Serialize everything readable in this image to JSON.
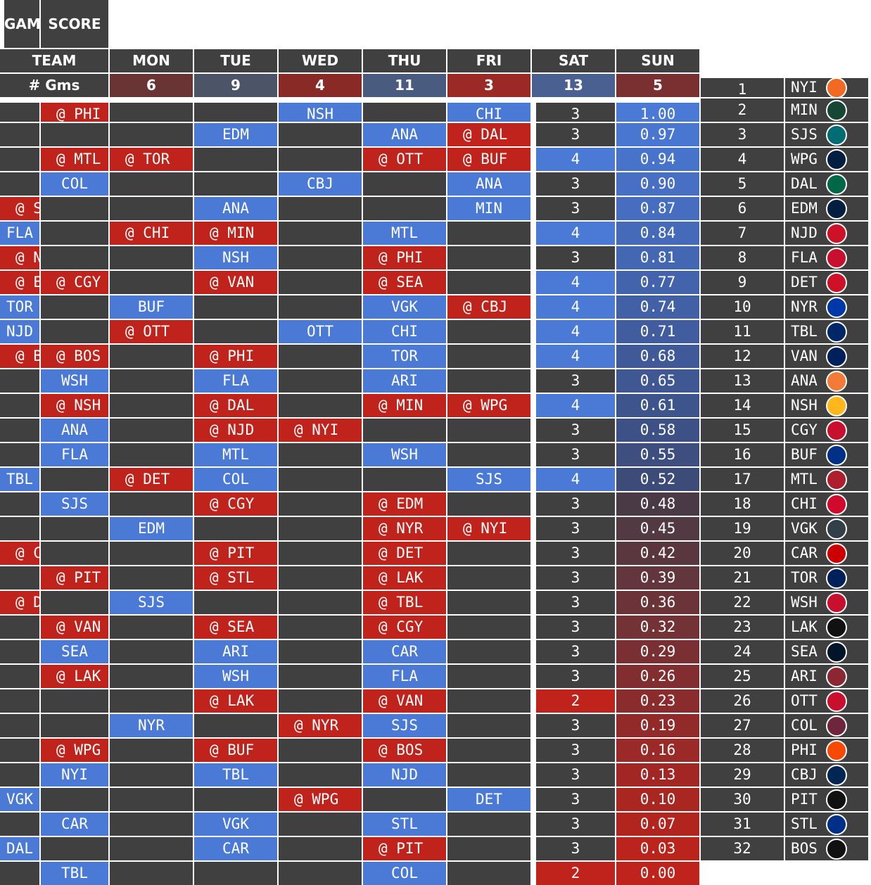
{
  "header": {
    "team": "TEAM",
    "gms_label": "# Gms",
    "games": "GAMES",
    "score": "SCORE",
    "days": [
      {
        "label": "MON",
        "count": "6",
        "bg": "#6b3434"
      },
      {
        "label": "TUE",
        "count": "9",
        "bg": "#4b5567"
      },
      {
        "label": "WED",
        "count": "4",
        "bg": "#8a2a26"
      },
      {
        "label": "THU",
        "count": "11",
        "bg": "#4a5b80"
      },
      {
        "label": "FRI",
        "count": "3",
        "bg": "#9b2a26"
      },
      {
        "label": "SAT",
        "count": "13",
        "bg": "#4a6090"
      },
      {
        "label": "SUN",
        "count": "5",
        "bg": "#7a3030"
      }
    ]
  },
  "colors": {
    "away": "#c0231b",
    "home": "#4a79d6",
    "cell": "#404040"
  },
  "rows": [
    {
      "rank": "1",
      "team": "NYI",
      "logo": "#f26924",
      "games": "3",
      "score": "1.00",
      "score_bg": "#4a79d6",
      "games_bg": "#404040",
      "cells": [
        "",
        "@ PHI",
        "",
        "",
        "NSH",
        "",
        "CHI"
      ]
    },
    {
      "rank": "2",
      "team": "MIN",
      "logo": "#154734",
      "games": "3",
      "score": "0.97",
      "score_bg": "#4976d0",
      "games_bg": "#404040",
      "cells": [
        "",
        "",
        "",
        "EDM",
        "",
        "ANA",
        "@ DAL"
      ]
    },
    {
      "rank": "3",
      "team": "SJS",
      "logo": "#006d75",
      "games": "4",
      "score": "0.94",
      "score_bg": "#4873cb",
      "games_bg": "#4a79d6",
      "cells": [
        "",
        "@ MTL",
        "@ TOR",
        "",
        "",
        "@ OTT",
        "@ BUF"
      ]
    },
    {
      "rank": "4",
      "team": "WPG",
      "logo": "#041e42",
      "games": "3",
      "score": "0.90",
      "score_bg": "#4770c5",
      "games_bg": "#404040",
      "cells": [
        "",
        "COL",
        "",
        "",
        "CBJ",
        "",
        "ANA"
      ]
    },
    {
      "rank": "5",
      "team": "DAL",
      "logo": "#006847",
      "games": "3",
      "score": "0.87",
      "score_bg": "#466dbf",
      "games_bg": "#404040",
      "cells": [
        "@ STL",
        "",
        "",
        "ANA",
        "",
        "",
        "MIN"
      ]
    },
    {
      "rank": "6",
      "team": "EDM",
      "logo": "#041e42",
      "games": "4",
      "score": "0.84",
      "score_bg": "#456ab9",
      "games_bg": "#4a79d6",
      "cells": [
        "FLA",
        "",
        "@ CHI",
        "@ MIN",
        "",
        "MTL",
        ""
      ]
    },
    {
      "rank": "7",
      "team": "NJD",
      "logo": "#ce1126",
      "games": "3",
      "score": "0.81",
      "score_bg": "#4467b3",
      "games_bg": "#404040",
      "cells": [
        "@ NYR",
        "",
        "",
        "NSH",
        "",
        "@ PHI",
        ""
      ]
    },
    {
      "rank": "8",
      "team": "FLA",
      "logo": "#c8102e",
      "games": "4",
      "score": "0.77",
      "score_bg": "#4363ac",
      "games_bg": "#4a79d6",
      "cells": [
        "@ EDM",
        "@ CGY",
        "",
        "@ VAN",
        "",
        "@ SEA",
        ""
      ]
    },
    {
      "rank": "9",
      "team": "DET",
      "logo": "#ce1126",
      "games": "4",
      "score": "0.74",
      "score_bg": "#4260a6",
      "games_bg": "#4a79d6",
      "cells": [
        "TOR",
        "",
        "BUF",
        "",
        "",
        "VGK",
        "@ CBJ"
      ]
    },
    {
      "rank": "10",
      "team": "NYR",
      "logo": "#0038a8",
      "games": "4",
      "score": "0.71",
      "score_bg": "#415d9f",
      "games_bg": "#4a79d6",
      "cells": [
        "NJD",
        "",
        "@ OTT",
        "",
        "OTT",
        "CHI",
        ""
      ]
    },
    {
      "rank": "11",
      "team": "TBL",
      "logo": "#002868",
      "games": "4",
      "score": "0.68",
      "score_bg": "#405a99",
      "games_bg": "#4a79d6",
      "cells": [
        "@ BUF",
        "@ BOS",
        "",
        "@ PHI",
        "",
        "TOR",
        ""
      ]
    },
    {
      "rank": "12",
      "team": "VAN",
      "logo": "#00205b",
      "games": "3",
      "score": "0.65",
      "score_bg": "#3f5793",
      "games_bg": "#404040",
      "cells": [
        "",
        "WSH",
        "",
        "FLA",
        "",
        "ARI",
        ""
      ]
    },
    {
      "rank": "13",
      "team": "ANA",
      "logo": "#f47a38",
      "games": "4",
      "score": "0.61",
      "score_bg": "#3e548c",
      "games_bg": "#4a79d6",
      "cells": [
        "",
        "@ NSH",
        "",
        "@ DAL",
        "",
        "@ MIN",
        "@ WPG"
      ]
    },
    {
      "rank": "14",
      "team": "NSH",
      "logo": "#ffb81c",
      "games": "3",
      "score": "0.58",
      "score_bg": "#3d5186",
      "games_bg": "#404040",
      "cells": [
        "",
        "ANA",
        "",
        "@ NJD",
        "@ NYI",
        "",
        ""
      ]
    },
    {
      "rank": "15",
      "team": "CGY",
      "logo": "#c8102e",
      "games": "3",
      "score": "0.55",
      "score_bg": "#3d4e7f",
      "games_bg": "#404040",
      "cells": [
        "",
        "FLA",
        "",
        "MTL",
        "",
        "WSH",
        ""
      ]
    },
    {
      "rank": "16",
      "team": "BUF",
      "logo": "#003087",
      "games": "4",
      "score": "0.52",
      "score_bg": "#3c4b78",
      "games_bg": "#4a79d6",
      "cells": [
        "TBL",
        "",
        "@ DET",
        "COL",
        "",
        "",
        "SJS"
      ]
    },
    {
      "rank": "17",
      "team": "MTL",
      "logo": "#af1e2d",
      "games": "3",
      "score": "0.48",
      "score_bg": "#4a3a45",
      "games_bg": "#404040",
      "cells": [
        "",
        "SJS",
        "",
        "@ CGY",
        "",
        "@ EDM",
        ""
      ]
    },
    {
      "rank": "18",
      "team": "CHI",
      "logo": "#cf0a2c",
      "games": "3",
      "score": "0.45",
      "score_bg": "#523942",
      "games_bg": "#404040",
      "cells": [
        "",
        "",
        "EDM",
        "",
        "",
        "@ NYR",
        "@ NYI"
      ]
    },
    {
      "rank": "19",
      "team": "VGK",
      "logo": "#333f48",
      "games": "3",
      "score": "0.42",
      "score_bg": "#5a373f",
      "games_bg": "#404040",
      "cells": [
        "@ CBJ",
        "",
        "",
        "@ PIT",
        "",
        "@ DET",
        ""
      ]
    },
    {
      "rank": "20",
      "team": "CAR",
      "logo": "#cc0000",
      "games": "3",
      "score": "0.39",
      "score_bg": "#62363c",
      "games_bg": "#404040",
      "cells": [
        "",
        "@ PIT",
        "",
        "@ STL",
        "",
        "@ LAK",
        ""
      ]
    },
    {
      "rank": "21",
      "team": "TOR",
      "logo": "#00205b",
      "games": "3",
      "score": "0.36",
      "score_bg": "#6a3439",
      "games_bg": "#404040",
      "cells": [
        "@ DET",
        "",
        "SJS",
        "",
        "",
        "@ TBL",
        ""
      ]
    },
    {
      "rank": "22",
      "team": "WSH",
      "logo": "#c8102e",
      "games": "3",
      "score": "0.32",
      "score_bg": "#723236",
      "games_bg": "#404040",
      "cells": [
        "",
        "@ VAN",
        "",
        "@ SEA",
        "",
        "@ CGY",
        ""
      ]
    },
    {
      "rank": "23",
      "team": "LAK",
      "logo": "#111111",
      "games": "3",
      "score": "0.29",
      "score_bg": "#7a3033",
      "games_bg": "#404040",
      "cells": [
        "",
        "SEA",
        "",
        "ARI",
        "",
        "CAR",
        ""
      ]
    },
    {
      "rank": "24",
      "team": "SEA",
      "logo": "#001628",
      "games": "3",
      "score": "0.26",
      "score_bg": "#822e30",
      "games_bg": "#404040",
      "cells": [
        "",
        "@ LAK",
        "",
        "WSH",
        "",
        "FLA",
        ""
      ]
    },
    {
      "rank": "25",
      "team": "ARI",
      "logo": "#8c2633",
      "games": "2",
      "score": "0.23",
      "score_bg": "#8a2c2d",
      "games_bg": "#c0231b",
      "cells": [
        "",
        "",
        "",
        "@ LAK",
        "",
        "@ VAN",
        ""
      ]
    },
    {
      "rank": "26",
      "team": "OTT",
      "logo": "#c8102e",
      "games": "3",
      "score": "0.19",
      "score_bg": "#922a2a",
      "games_bg": "#404040",
      "cells": [
        "",
        "",
        "NYR",
        "",
        "@ NYR",
        "SJS",
        ""
      ]
    },
    {
      "rank": "27",
      "team": "COL",
      "logo": "#6f263d",
      "games": "3",
      "score": "0.16",
      "score_bg": "#9a2927",
      "games_bg": "#404040",
      "cells": [
        "",
        "@ WPG",
        "",
        "@ BUF",
        "",
        "@ BOS",
        ""
      ]
    },
    {
      "rank": "28",
      "team": "PHI",
      "logo": "#f74902",
      "games": "3",
      "score": "0.13",
      "score_bg": "#a22724",
      "games_bg": "#404040",
      "cells": [
        "",
        "NYI",
        "",
        "TBL",
        "",
        "NJD",
        ""
      ]
    },
    {
      "rank": "29",
      "team": "CBJ",
      "logo": "#002654",
      "games": "3",
      "score": "0.10",
      "score_bg": "#aa2621",
      "games_bg": "#404040",
      "cells": [
        "VGK",
        "",
        "",
        "",
        "@ WPG",
        "",
        "DET"
      ]
    },
    {
      "rank": "30",
      "team": "PIT",
      "logo": "#111111",
      "games": "3",
      "score": "0.07",
      "score_bg": "#b2251e",
      "games_bg": "#404040",
      "cells": [
        "",
        "CAR",
        "",
        "VGK",
        "",
        "STL",
        ""
      ]
    },
    {
      "rank": "31",
      "team": "STL",
      "logo": "#002f87",
      "games": "3",
      "score": "0.03",
      "score_bg": "#ba241c",
      "games_bg": "#404040",
      "cells": [
        "DAL",
        "",
        "",
        "CAR",
        "",
        "@ PIT",
        ""
      ]
    },
    {
      "rank": "32",
      "team": "BOS",
      "logo": "#111111",
      "games": "2",
      "score": "0.00",
      "score_bg": "#c0231b",
      "games_bg": "#c0231b",
      "cells": [
        "",
        "TBL",
        "",
        "",
        "",
        "COL",
        ""
      ]
    }
  ]
}
